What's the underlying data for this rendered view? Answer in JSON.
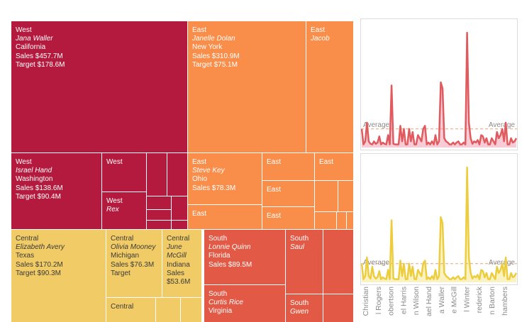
{
  "chart_data": [
    {
      "type": "treemap",
      "title": "",
      "tiles": [
        {
          "region": "West",
          "manager": "Jana Waller",
          "state": "California",
          "sales": "Sales $457.7M",
          "target": "Target $178.6M"
        },
        {
          "region": "West",
          "manager": "Israel Hand",
          "state": "Washington",
          "sales": "Sales $138.6M",
          "target": "Target $90.4M"
        },
        {
          "region": "West",
          "manager": "",
          "state": "",
          "sales": "",
          "target": ""
        },
        {
          "region": "West",
          "manager": "Rex",
          "state": "",
          "sales": "",
          "target": ""
        },
        {
          "region": "East",
          "manager": "Janelle Dolan",
          "state": "New York",
          "sales": "Sales $310.9M",
          "target": "Target $75.1M"
        },
        {
          "region": "East",
          "manager": "Jacob",
          "state": "",
          "sales": "",
          "target": ""
        },
        {
          "region": "East",
          "manager": "Steve Key",
          "state": "Ohio",
          "sales": "Sales $78.3M",
          "target": ""
        },
        {
          "region": "East",
          "manager": "",
          "state": "",
          "sales": "",
          "target": ""
        },
        {
          "region": "East",
          "manager": "",
          "state": "",
          "sales": "",
          "target": ""
        },
        {
          "region": "East",
          "manager": "",
          "state": "",
          "sales": "",
          "target": ""
        },
        {
          "region": "East",
          "manager": "",
          "state": "",
          "sales": "",
          "target": ""
        },
        {
          "region": "East",
          "manager": "",
          "state": "",
          "sales": "",
          "target": ""
        },
        {
          "region": "Central",
          "manager": "Elizabeth Avery",
          "state": "Texas",
          "sales": "Sales $170.2M",
          "target": "Target $90.3M"
        },
        {
          "region": "Central",
          "manager": "Olivia Mooney",
          "state": "Michigan",
          "sales": "Sales $76.3M",
          "target": "Target"
        },
        {
          "region": "Central",
          "manager": "June McGill",
          "state": "Indiana",
          "sales": "Sales $53.6M",
          "target": ""
        },
        {
          "region": "Central",
          "manager": "",
          "state": "",
          "sales": "",
          "target": ""
        },
        {
          "region": "South",
          "manager": "Lonnie Quinn",
          "state": "Florida",
          "sales": "Sales $89.5M",
          "target": ""
        },
        {
          "region": "South",
          "manager": "Saul",
          "state": "",
          "sales": "",
          "target": ""
        },
        {
          "region": "South",
          "manager": "Curtis Rice",
          "state": "Virginia",
          "sales": "",
          "target": ""
        },
        {
          "region": "South",
          "manager": "Gwen",
          "state": "",
          "sales": "",
          "target": ""
        }
      ],
      "colors": {
        "West": "#b31a3e",
        "East": "#f98e4a",
        "Central": "#f1cc66",
        "South": "#e25a45"
      }
    },
    {
      "type": "area",
      "title": "",
      "reference_line": "Average",
      "reference_value": 30,
      "ylim": [
        0,
        200
      ],
      "values": [
        30,
        5,
        10,
        40,
        10,
        6,
        5,
        10,
        6,
        8,
        18,
        5,
        8,
        6,
        5,
        20,
        5,
        100,
        6,
        5,
        5,
        5,
        35,
        10,
        30,
        5,
        5,
        30,
        10,
        25,
        5,
        5,
        20,
        15,
        10,
        30,
        35,
        5,
        8,
        5,
        10,
        5,
        20,
        5,
        10,
        105,
        95,
        15,
        10,
        8,
        5,
        5,
        8,
        5,
        8,
        10,
        5,
        5,
        8,
        5,
        185,
        40,
        15,
        6,
        10,
        8,
        12,
        5,
        20,
        18,
        8,
        15,
        5,
        5,
        15,
        10,
        5,
        25,
        15,
        20,
        30,
        10,
        40,
        5,
        5,
        15,
        8,
        10,
        15
      ],
      "line_color": "#e05a5e",
      "fill_color": "#f4b7c6"
    },
    {
      "type": "area",
      "title": "",
      "reference_line": "Average",
      "reference_value": 30,
      "ylim": [
        0,
        200
      ],
      "values": [
        30,
        5,
        10,
        40,
        10,
        6,
        25,
        10,
        6,
        8,
        18,
        5,
        8,
        6,
        5,
        20,
        5,
        100,
        6,
        5,
        5,
        5,
        35,
        10,
        30,
        5,
        5,
        30,
        10,
        25,
        5,
        5,
        20,
        15,
        10,
        30,
        35,
        5,
        8,
        5,
        10,
        5,
        20,
        5,
        10,
        105,
        95,
        15,
        10,
        8,
        5,
        5,
        8,
        5,
        8,
        10,
        5,
        5,
        8,
        5,
        185,
        40,
        15,
        6,
        10,
        8,
        12,
        5,
        20,
        18,
        8,
        15,
        5,
        5,
        15,
        10,
        5,
        25,
        15,
        20,
        30,
        10,
        40,
        5,
        5,
        15,
        8,
        10,
        15
      ],
      "line_color": "#eccd3e",
      "fill_color": "#faeca8",
      "x_tick_labels": [
        "Christian",
        "l Rogers",
        "obertson",
        "el Harris",
        "n Wilson",
        "ael Hand",
        "a Waller",
        "e McGill",
        "l Winter",
        "rederick",
        "n Barton",
        "hambers"
      ]
    }
  ]
}
